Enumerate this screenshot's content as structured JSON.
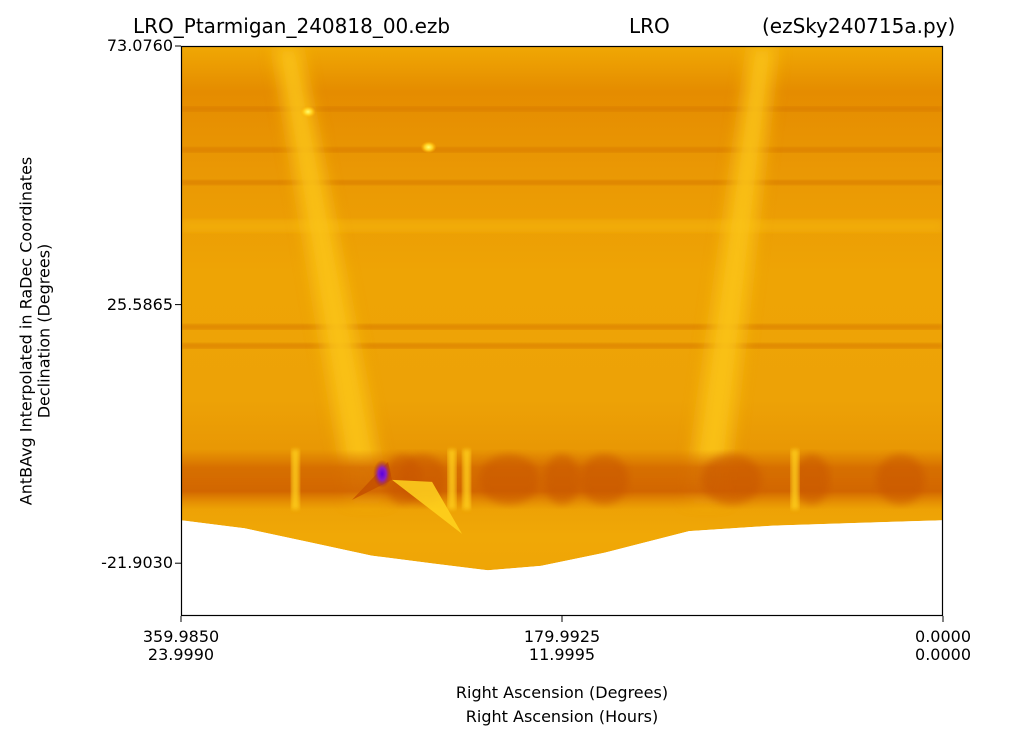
{
  "title": {
    "left": "LRO_Ptarmigan_240818_00.ezb",
    "center": "LRO",
    "right": "(ezSky240715a.py)"
  },
  "chart_data": {
    "type": "heatmap",
    "title": "LRO_Ptarmigan_240818_00.ezb   LRO   (ezSky240715a.py)",
    "xlabel": "Right Ascension (Degrees)",
    "xlabel2": "Right Ascension (Hours)",
    "ylabel": "AntBAvg Interpolated in RaDec Coordinates",
    "ylabel2": "Declination (Degrees)",
    "xlim": [
      359.985,
      0.0
    ],
    "ylim": [
      -31.6,
      73.076
    ],
    "x_inverted": true,
    "x_ticks": [
      {
        "deg": "359.9850",
        "hours": "23.9990",
        "value": 359.985
      },
      {
        "deg": "179.9925",
        "hours": "11.9995",
        "value": 179.9925
      },
      {
        "deg": "0.0000",
        "hours": "0.0000",
        "value": 0.0
      }
    ],
    "y_ticks": [
      {
        "label": "73.0760",
        "value": 73.076
      },
      {
        "label": "25.5865",
        "value": 25.5865
      },
      {
        "label": "-21.9030",
        "value": -21.903
      }
    ],
    "colormap": "gnuplot",
    "coverage_lower_edge": [
      {
        "ra": 359.985,
        "dec": -14.0
      },
      {
        "ra": 330,
        "dec": -15.5
      },
      {
        "ra": 300,
        "dec": -18.0
      },
      {
        "ra": 270,
        "dec": -20.5
      },
      {
        "ra": 240,
        "dec": -22.0
      },
      {
        "ra": 215,
        "dec": -23.2
      },
      {
        "ra": 190,
        "dec": -22.4
      },
      {
        "ra": 160,
        "dec": -20.0
      },
      {
        "ra": 120,
        "dec": -16.0
      },
      {
        "ra": 80,
        "dec": -15.0
      },
      {
        "ra": 40,
        "dec": -14.5
      },
      {
        "ra": 0.0,
        "dec": -14.0
      }
    ],
    "features": [
      {
        "kind": "dark-band",
        "dec": 61.5
      },
      {
        "kind": "dark-band",
        "dec": 54.0
      },
      {
        "kind": "dark-band",
        "dec": 48.0
      },
      {
        "kind": "light-band",
        "dec": 40.0
      },
      {
        "kind": "dark-band",
        "dec": 21.5
      },
      {
        "kind": "dark-band",
        "dec": 18.0
      },
      {
        "kind": "galactic-plane-ridge",
        "ra_top": 310,
        "ra_bottom": 272
      },
      {
        "kind": "galactic-plane-ridge",
        "ra_top": 85,
        "ra_bottom": 112
      },
      {
        "kind": "dark-strip",
        "dec_min": -12.0,
        "dec_max": -1.0
      },
      {
        "kind": "min-spot",
        "ra": 265,
        "dec": -5.5
      },
      {
        "kind": "hot-spot",
        "ra": 243,
        "dec": 54.5
      },
      {
        "kind": "hot-spot",
        "ra": 300,
        "dec": 61.0
      }
    ]
  }
}
